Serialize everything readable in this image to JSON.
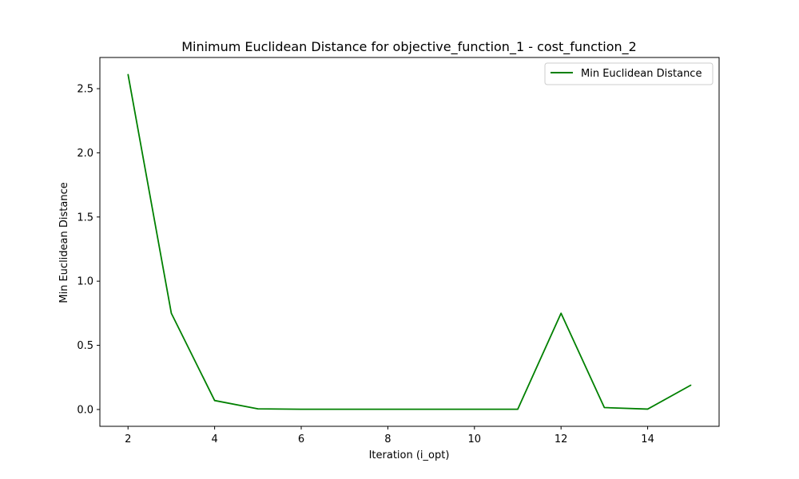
{
  "chart_data": {
    "type": "line",
    "title": "Minimum Euclidean Distance for objective_function_1 - cost_function_2",
    "xlabel": "Iteration (i_opt)",
    "ylabel": "Min Euclidean Distance",
    "xlim": [
      1.35,
      15.65
    ],
    "ylim": [
      -0.131,
      2.743
    ],
    "xticks": [
      2,
      4,
      6,
      8,
      10,
      12,
      14
    ],
    "yticks": [
      0.0,
      0.5,
      1.0,
      1.5,
      2.0,
      2.5
    ],
    "ytick_labels": [
      "0.0",
      "0.5",
      "1.0",
      "1.5",
      "2.0",
      "2.5"
    ],
    "grid": false,
    "legend_position": "upper-right",
    "series": [
      {
        "name": "Min Euclidean Distance",
        "color": "#008000",
        "x": [
          2,
          3,
          4,
          5,
          6,
          7,
          8,
          9,
          10,
          11,
          12,
          13,
          14,
          15
        ],
        "y": [
          2.612,
          0.75,
          0.07,
          0.005,
          0.002,
          0.002,
          0.002,
          0.002,
          0.002,
          0.002,
          0.75,
          0.015,
          0.003,
          0.19
        ]
      }
    ]
  }
}
